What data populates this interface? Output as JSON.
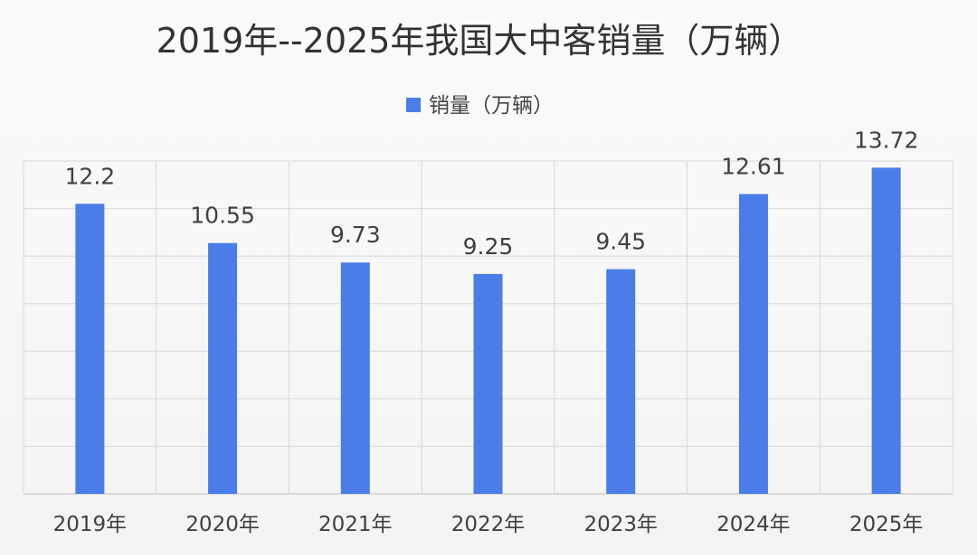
{
  "chart_data": {
    "type": "bar",
    "title": "2019年--2025年我国大中客销量（万辆）",
    "legend_position": "top",
    "grid": true,
    "series": [
      {
        "name": "销量（万辆）",
        "color": "#4a7de8",
        "values": [
          12.2,
          10.55,
          9.73,
          9.25,
          9.45,
          12.61,
          13.72
        ]
      }
    ],
    "categories": [
      "2019年",
      "2020年",
      "2021年",
      "2022年",
      "2023年",
      "2024年",
      "2025年"
    ],
    "value_labels": [
      "12.2",
      "10.55",
      "9.73",
      "9.25",
      "9.45",
      "12.61",
      "13.72"
    ],
    "ylim": [
      0,
      14
    ]
  }
}
